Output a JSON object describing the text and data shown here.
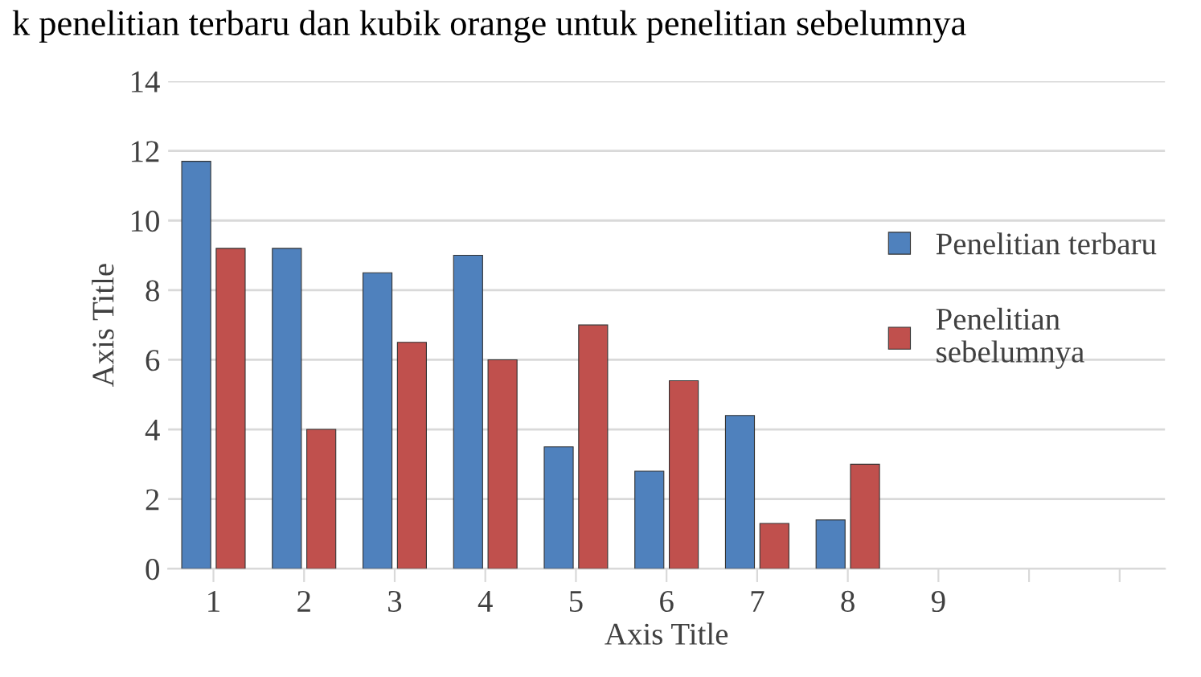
{
  "chart_data": {
    "type": "bar",
    "title": "k penelitian terbaru dan kubik orange untuk penelitian sebelumnya",
    "categories": [
      "1",
      "2",
      "3",
      "4",
      "5",
      "6",
      "7",
      "8",
      "9",
      null,
      null
    ],
    "series": [
      {
        "name": "Penelitian terbaru",
        "color": "#4f81bd",
        "values": [
          11.7,
          9.2,
          8.5,
          9.0,
          3.5,
          2.8,
          4.4,
          1.4,
          null,
          null,
          null
        ]
      },
      {
        "name": "Penelitian\nsebelumnya",
        "color": "#c0504d",
        "values": [
          9.2,
          4.0,
          6.5,
          6.0,
          7.0,
          5.4,
          1.3,
          3.0,
          null,
          null,
          null
        ]
      }
    ],
    "xlabel": "Axis Title",
    "ylabel": "Axis Title",
    "ylim": [
      0,
      14
    ],
    "yticks": [
      0,
      2,
      4,
      6,
      8,
      10,
      12,
      14
    ],
    "grid": "y",
    "legend": "right"
  }
}
